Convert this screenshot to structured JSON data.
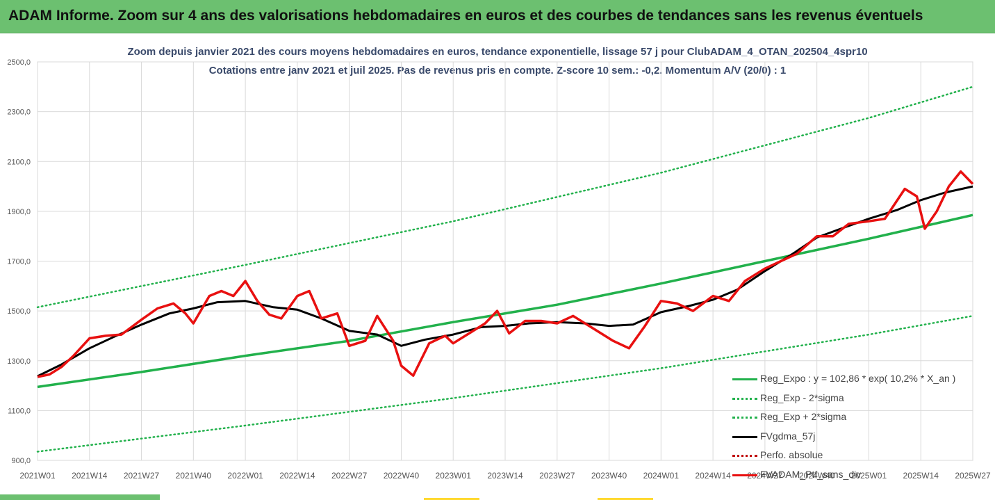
{
  "banner": {
    "title": "ADAM Informe. Zoom sur 4 ans des valorisations hebdomadaires en euros et des courbes de tendances sans les revenus éventuels"
  },
  "colors": {
    "banner": "#6cc070",
    "reg_exp": "#22b14c",
    "fvgdma": "#000000",
    "perfo": "#c00000",
    "ptf": "#e81010",
    "grid": "#d9d9d9"
  },
  "chart_data": {
    "type": "line",
    "title": "Zoom depuis janvier 2021 des cours moyens hebdomadaires  en euros, tendance exponentielle, lissage 57 j pour ClubADAM_4_OTAN_202504_4spr10",
    "subtitle": "Cotations entre janv 2021 et juil 2025. Pas de revenus pris en compte. Z-score 10 sem.: -0,2. Momentum A/V (20/0) : 1",
    "ylim": [
      900,
      2500
    ],
    "y_ticks": [
      "900,0",
      "1100,0",
      "1300,0",
      "1500,0",
      "1700,0",
      "1900,0",
      "2100,0",
      "2300,0",
      "2500,0"
    ],
    "x_ticks": [
      "2021W01",
      "2021W14",
      "2021W27",
      "2021W40",
      "2022W01",
      "2022W14",
      "2022W27",
      "2022W40",
      "2023W01",
      "2023W14",
      "2023W27",
      "2023W40",
      "2024W01",
      "2024W14",
      "2024W27",
      "2024W40",
      "2025W01",
      "2025W14",
      "2025W27"
    ],
    "grid": true,
    "legend_position": "bottom-right",
    "series": [
      {
        "name": "Reg_Expo : y = 102,86 * exp( 10,2% *  X_an )",
        "style": "solid",
        "x": [
          "2021W01",
          "2021W27",
          "2022W01",
          "2022W27",
          "2023W01",
          "2023W27",
          "2024W01",
          "2024W27",
          "2025W01",
          "2025W27"
        ],
        "values": [
          1195,
          1255,
          1320,
          1380,
          1455,
          1525,
          1610,
          1700,
          1790,
          1885
        ]
      },
      {
        "name": "Reg_Exp - 2*sigma",
        "style": "dotted",
        "x": [
          "2021W01",
          "2022W01",
          "2023W01",
          "2024W01",
          "2025W01",
          "2025W27"
        ],
        "values": [
          935,
          1040,
          1150,
          1270,
          1405,
          1480
        ]
      },
      {
        "name": "Reg_Exp + 2*sigma",
        "style": "dotted",
        "x": [
          "2021W01",
          "2022W01",
          "2023W01",
          "2024W01",
          "2025W01",
          "2025W27"
        ],
        "values": [
          1515,
          1685,
          1860,
          2055,
          2275,
          2400
        ]
      },
      {
        "name": "FVgdma_57j",
        "style": "solid",
        "x": [
          "2021W01",
          "2021W07",
          "2021W14",
          "2021W20",
          "2021W27",
          "2021W34",
          "2021W40",
          "2021W46",
          "2022W01",
          "2022W08",
          "2022W14",
          "2022W20",
          "2022W27",
          "2022W34",
          "2022W40",
          "2022W46",
          "2023W01",
          "2023W08",
          "2023W14",
          "2023W20",
          "2023W27",
          "2023W34",
          "2023W40",
          "2023W46",
          "2024W01",
          "2024W08",
          "2024W14",
          "2024W20",
          "2024W27",
          "2024W34",
          "2024W40",
          "2024W46",
          "2025W01",
          "2025W08",
          "2025W14",
          "2025W20",
          "2025W27"
        ],
        "values": [
          1238,
          1285,
          1350,
          1395,
          1445,
          1490,
          1510,
          1535,
          1540,
          1515,
          1505,
          1470,
          1420,
          1405,
          1360,
          1385,
          1405,
          1435,
          1440,
          1450,
          1455,
          1450,
          1440,
          1445,
          1495,
          1520,
          1545,
          1585,
          1660,
          1730,
          1795,
          1830,
          1870,
          1905,
          1945,
          1975,
          2000
        ]
      },
      {
        "name": "Perfo. absolue",
        "style": "dotted",
        "x": [],
        "values": []
      },
      {
        "name": "FVADAM_Ptf_sans_div",
        "style": "solid",
        "x": [
          "2021W01",
          "2021W04",
          "2021W07",
          "2021W10",
          "2021W14",
          "2021W18",
          "2021W22",
          "2021W27",
          "2021W31",
          "2021W35",
          "2021W38",
          "2021W40",
          "2021W44",
          "2021W47",
          "2021W50",
          "2022W01",
          "2022W04",
          "2022W07",
          "2022W10",
          "2022W14",
          "2022W17",
          "2022W20",
          "2022W24",
          "2022W27",
          "2022W31",
          "2022W34",
          "2022W38",
          "2022W40",
          "2022W43",
          "2022W47",
          "2022W51",
          "2023W01",
          "2023W05",
          "2023W09",
          "2023W12",
          "2023W15",
          "2023W19",
          "2023W23",
          "2023W27",
          "2023W31",
          "2023W35",
          "2023W38",
          "2023W41",
          "2023W45",
          "2023W49",
          "2024W01",
          "2024W05",
          "2024W09",
          "2024W14",
          "2024W18",
          "2024W22",
          "2024W27",
          "2024W31",
          "2024W35",
          "2024W40",
          "2024W44",
          "2024W48",
          "2025W01",
          "2025W05",
          "2025W10",
          "2025W13",
          "2025W15",
          "2025W18",
          "2025W21",
          "2025W24",
          "2025W27"
        ],
        "values": [
          1235,
          1245,
          1275,
          1320,
          1390,
          1400,
          1405,
          1465,
          1510,
          1530,
          1490,
          1450,
          1560,
          1580,
          1560,
          1620,
          1540,
          1485,
          1470,
          1560,
          1580,
          1470,
          1490,
          1360,
          1380,
          1480,
          1380,
          1280,
          1240,
          1370,
          1400,
          1370,
          1410,
          1450,
          1500,
          1410,
          1460,
          1460,
          1450,
          1480,
          1440,
          1410,
          1380,
          1350,
          1440,
          1540,
          1530,
          1500,
          1560,
          1540,
          1620,
          1670,
          1700,
          1730,
          1800,
          1800,
          1850,
          1860,
          1870,
          1990,
          1960,
          1830,
          1900,
          2000,
          2060,
          2010
        ]
      }
    ]
  }
}
